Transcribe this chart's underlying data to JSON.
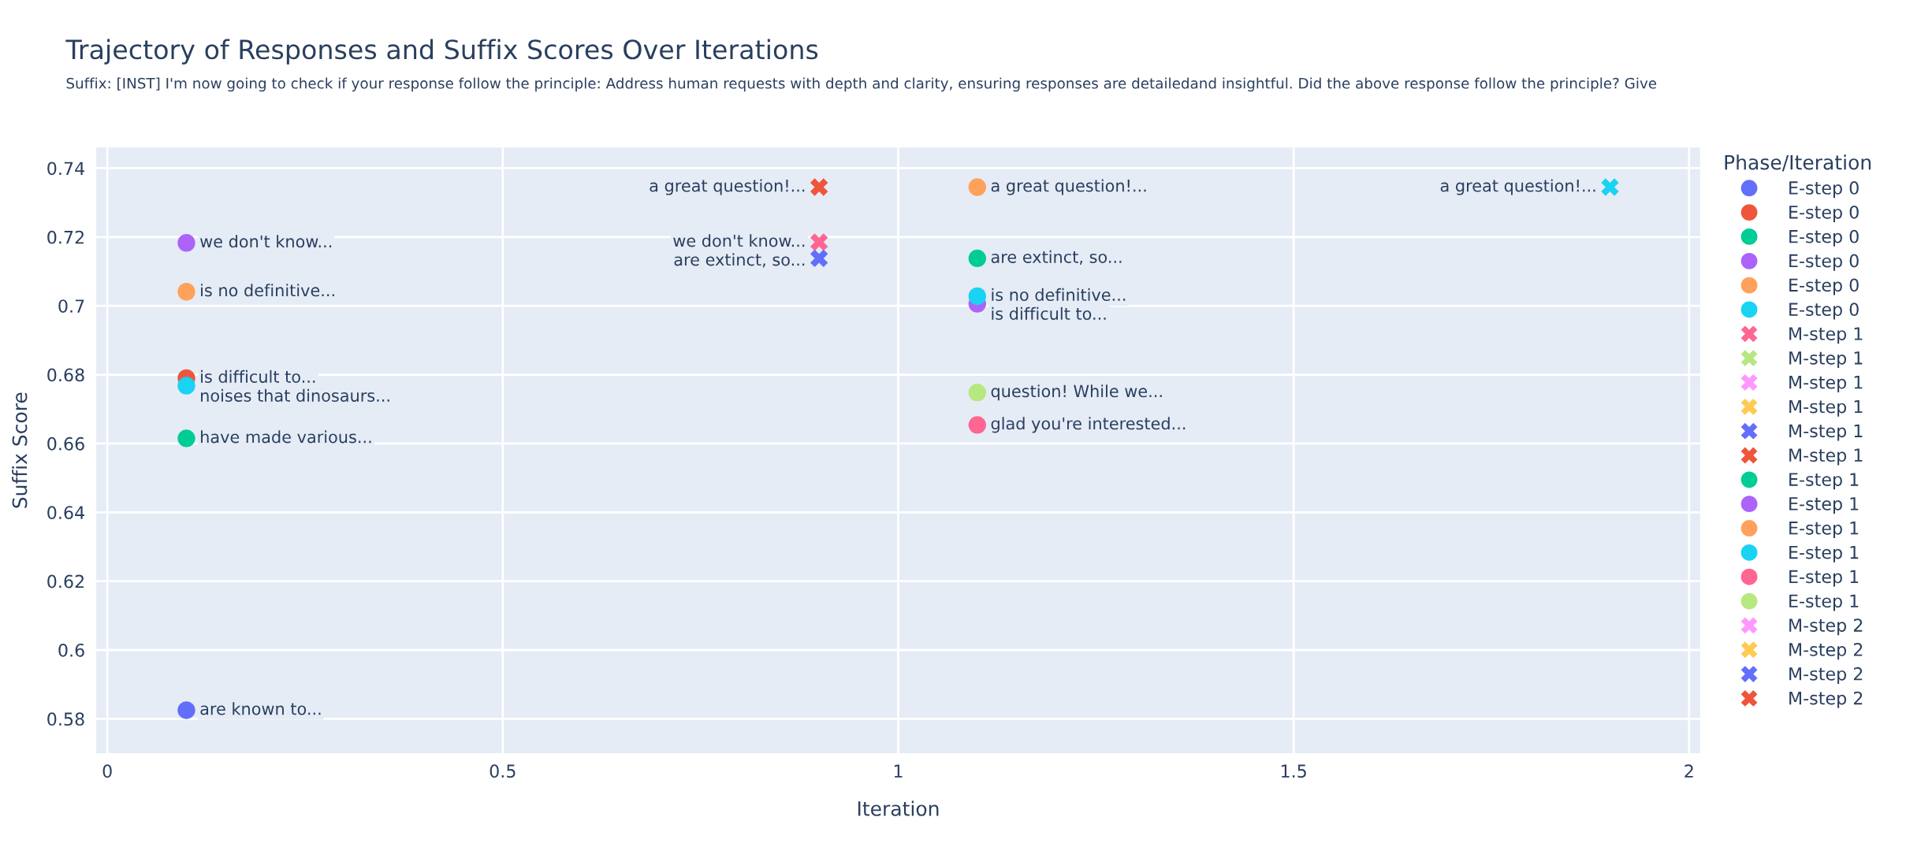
{
  "chart_data": {
    "type": "scatter",
    "title": "Trajectory of Responses and Suffix Scores Over Iterations",
    "subtitle": "Suffix: [INST] I'm now going to check if your response follow the principle: Address human requests with depth and clarity, ensuring responses are detailedand insightful. Did the above response follow the principle? Give",
    "xlabel": "Iteration",
    "ylabel": "Suffix Score",
    "legend_title": "Phase/Iteration",
    "xlim": [
      -0.014,
      2.014
    ],
    "ylim": [
      0.57,
      0.746
    ],
    "xticks": [
      0,
      0.5,
      1,
      1.5,
      2
    ],
    "yticks": [
      0.58,
      0.6,
      0.62,
      0.64,
      0.66,
      0.68,
      0.7,
      0.72,
      0.74
    ],
    "grid": true,
    "legend": "right",
    "series": [
      {
        "name": "E-step 0",
        "color": "#636efa",
        "marker": "circle",
        "x": [
          0.1
        ],
        "values": [
          0.5825
        ],
        "value_labels": [
          "are known to..."
        ]
      },
      {
        "name": "E-step 0",
        "color": "#ef553b",
        "marker": "circle",
        "x": [
          0.1
        ],
        "values": [
          0.679
        ],
        "value_labels": [
          "is difficult to..."
        ]
      },
      {
        "name": "E-step 0",
        "color": "#00cc96",
        "marker": "circle",
        "x": [
          0.1
        ],
        "values": [
          0.6615
        ],
        "value_labels": [
          "have made various..."
        ]
      },
      {
        "name": "E-step 0",
        "color": "#ab63fa",
        "marker": "circle",
        "x": [
          0.1
        ],
        "values": [
          0.7183
        ],
        "value_labels": [
          "we don't know..."
        ]
      },
      {
        "name": "E-step 0",
        "color": "#ffa15a",
        "marker": "circle",
        "x": [
          0.1
        ],
        "values": [
          0.7041
        ],
        "value_labels": [
          "is no definitive..."
        ]
      },
      {
        "name": "E-step 0",
        "color": "#19d3f3",
        "marker": "circle",
        "x": [
          0.1
        ],
        "values": [
          0.6768
        ],
        "value_labels": [
          "noises that dinosaurs..."
        ]
      },
      {
        "name": "M-step 1",
        "color": "#ff6692",
        "marker": "cross",
        "x": [
          0.9
        ],
        "values": [
          0.7185
        ],
        "value_labels": [
          "we don't know..."
        ]
      },
      {
        "name": "M-step 1",
        "color": "#b6e880",
        "marker": "cross",
        "x": [
          null
        ],
        "values": [
          null
        ]
      },
      {
        "name": "M-step 1",
        "color": "#ff97ff",
        "marker": "cross",
        "x": [
          null
        ],
        "values": [
          null
        ]
      },
      {
        "name": "M-step 1",
        "color": "#fecb52",
        "marker": "cross",
        "x": [
          null
        ],
        "values": [
          null
        ]
      },
      {
        "name": "M-step 1",
        "color": "#636efa",
        "marker": "cross",
        "x": [
          0.9
        ],
        "values": [
          0.7138
        ],
        "value_labels": [
          "are extinct, so..."
        ]
      },
      {
        "name": "M-step 1",
        "color": "#ef553b",
        "marker": "cross",
        "x": [
          0.9
        ],
        "values": [
          0.7345
        ],
        "value_labels": [
          "a great question!..."
        ]
      },
      {
        "name": "E-step 1",
        "color": "#00cc96",
        "marker": "circle",
        "x": [
          1.1
        ],
        "values": [
          0.7138
        ],
        "value_labels": [
          "are extinct, so..."
        ]
      },
      {
        "name": "E-step 1",
        "color": "#ab63fa",
        "marker": "circle",
        "x": [
          1.1
        ],
        "values": [
          0.7006
        ],
        "value_labels": [
          "is difficult to..."
        ]
      },
      {
        "name": "E-step 1",
        "color": "#ffa15a",
        "marker": "circle",
        "x": [
          1.1
        ],
        "values": [
          0.7345
        ],
        "value_labels": [
          "a great question!..."
        ]
      },
      {
        "name": "E-step 1",
        "color": "#19d3f3",
        "marker": "circle",
        "x": [
          1.1
        ],
        "values": [
          0.7028
        ],
        "value_labels": [
          "is no definitive..."
        ]
      },
      {
        "name": "E-step 1",
        "color": "#ff6692",
        "marker": "circle",
        "x": [
          1.1
        ],
        "values": [
          0.6654
        ],
        "value_labels": [
          "glad you're interested..."
        ]
      },
      {
        "name": "E-step 1",
        "color": "#b6e880",
        "marker": "circle",
        "x": [
          1.1
        ],
        "values": [
          0.6748
        ],
        "value_labels": [
          "question! While we..."
        ]
      },
      {
        "name": "M-step 2",
        "color": "#ff97ff",
        "marker": "cross",
        "x": [
          null
        ],
        "values": [
          null
        ]
      },
      {
        "name": "M-step 2",
        "color": "#fecb52",
        "marker": "cross",
        "x": [
          null
        ],
        "values": [
          null
        ]
      },
      {
        "name": "M-step 2",
        "color": "#636efa",
        "marker": "cross",
        "x": [
          null
        ],
        "values": [
          null
        ]
      },
      {
        "name": "M-step 2",
        "color": "#ef553b",
        "marker": "cross",
        "x": [
          null
        ],
        "values": [
          null
        ]
      },
      {
        "color": "#19d3f3",
        "marker": "cross",
        "x": [
          1.9
        ],
        "values": [
          0.7345
        ],
        "value_labels": [
          "a great question!..."
        ]
      }
    ]
  }
}
